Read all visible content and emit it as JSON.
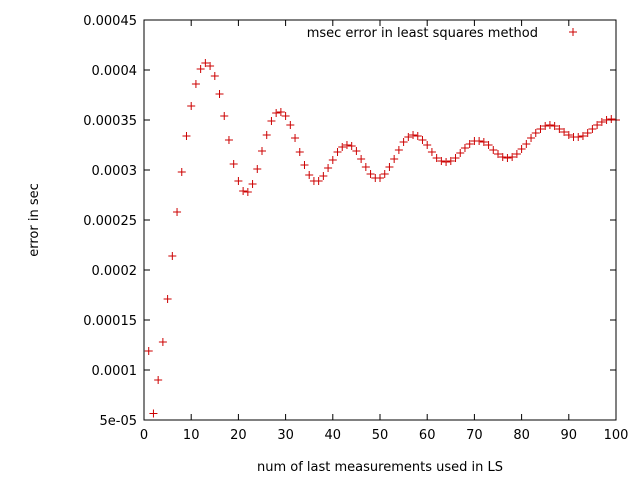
{
  "chart_data": {
    "type": "scatter",
    "xlabel": "num of last measurements used in LS",
    "ylabel": "error in sec",
    "xlim": [
      0,
      100
    ],
    "ylim": [
      5e-05,
      0.00045
    ],
    "x_ticks": [
      0,
      10,
      20,
      30,
      40,
      50,
      60,
      70,
      80,
      90,
      100
    ],
    "x_tick_labels": [
      "0",
      "10",
      "20",
      "30",
      "40",
      "50",
      "60",
      "70",
      "80",
      "90",
      "100"
    ],
    "y_ticks": [
      5e-05,
      0.0001,
      0.00015,
      0.0002,
      0.00025,
      0.0003,
      0.00035,
      0.0004,
      0.00045
    ],
    "y_tick_labels": [
      "5e-05",
      "0.0001",
      "0.00015",
      "0.0002",
      "0.00025",
      "0.0003",
      "0.00035",
      "0.0004",
      "0.00045"
    ],
    "grid": false,
    "legend": "top-right",
    "marker_color": "#cc0000",
    "series": [
      {
        "name": "msec error in least squares method",
        "x": [
          1,
          2,
          3,
          4,
          5,
          6,
          7,
          8,
          9,
          10,
          11,
          12,
          13,
          14,
          15,
          16,
          17,
          18,
          19,
          20,
          21,
          22,
          23,
          24,
          25,
          26,
          27,
          28,
          29,
          30,
          31,
          32,
          33,
          34,
          35,
          36,
          37,
          38,
          39,
          40,
          41,
          42,
          43,
          44,
          45,
          46,
          47,
          48,
          49,
          50,
          51,
          52,
          53,
          54,
          55,
          56,
          57,
          58,
          59,
          60,
          61,
          62,
          63,
          64,
          65,
          66,
          67,
          68,
          69,
          70,
          71,
          72,
          73,
          74,
          75,
          76,
          77,
          78,
          79,
          80,
          81,
          82,
          83,
          84,
          85,
          86,
          87,
          88,
          89,
          90,
          91,
          92,
          93,
          94,
          95,
          96,
          97,
          98,
          99,
          100
        ],
        "y": [
          0.000119,
          5.65e-05,
          9e-05,
          0.000128,
          0.000171,
          0.000214,
          0.000258,
          0.000298,
          0.000334,
          0.000364,
          0.000386,
          0.000401,
          0.000407,
          0.000404,
          0.000394,
          0.000376,
          0.000354,
          0.00033,
          0.000306,
          0.000289,
          0.000279,
          0.000278,
          0.000286,
          0.000301,
          0.000319,
          0.000335,
          0.000349,
          0.000357,
          0.000358,
          0.000354,
          0.000345,
          0.000332,
          0.000318,
          0.000305,
          0.000295,
          0.000289,
          0.000289,
          0.000294,
          0.000302,
          0.00031,
          0.000318,
          0.000323,
          0.000325,
          0.000324,
          0.000319,
          0.000311,
          0.000303,
          0.000296,
          0.000292,
          0.000292,
          0.000296,
          0.000303,
          0.000311,
          0.00032,
          0.000328,
          0.000333,
          0.000335,
          0.000334,
          0.00033,
          0.000325,
          0.000318,
          0.000312,
          0.000309,
          0.000308,
          0.000309,
          0.000312,
          0.000317,
          0.000322,
          0.000326,
          0.000329,
          0.000329,
          0.000328,
          0.000325,
          0.00032,
          0.000316,
          0.000313,
          0.000312,
          0.000313,
          0.000316,
          0.000321,
          0.000326,
          0.000332,
          0.000337,
          0.000341,
          0.000344,
          0.000345,
          0.000344,
          0.000341,
          0.000338,
          0.000335,
          0.000333,
          0.000333,
          0.000334,
          0.000337,
          0.000341,
          0.000345,
          0.000348,
          0.00035,
          0.000351,
          0.00035
        ]
      }
    ]
  }
}
